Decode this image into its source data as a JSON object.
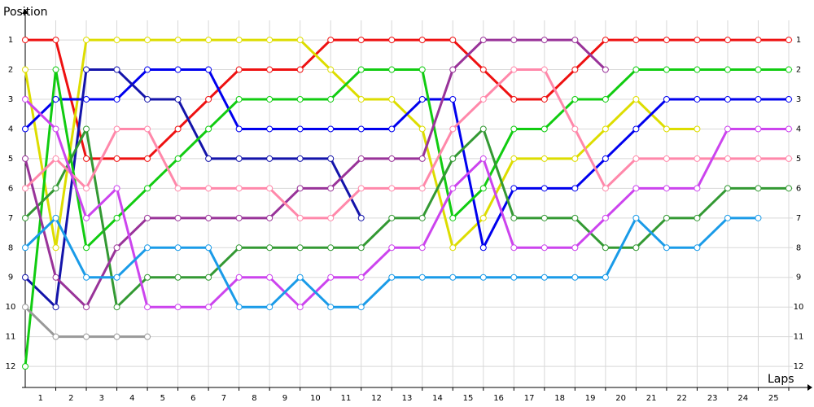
{
  "chart_data": {
    "type": "line",
    "y_axis_label": "Position",
    "x_axis_label": "Laps",
    "x": [
      0,
      1,
      2,
      3,
      4,
      5,
      6,
      7,
      8,
      9,
      10,
      11,
      12,
      13,
      14,
      15,
      16,
      17,
      18,
      19,
      20,
      21,
      22,
      23,
      24,
      25
    ],
    "xlim": [
      0,
      25.4
    ],
    "xticks": [
      1,
      2,
      3,
      4,
      5,
      6,
      7,
      8,
      9,
      10,
      11,
      12,
      13,
      14,
      15,
      16,
      17,
      18,
      19,
      20,
      21,
      22,
      23,
      24,
      25
    ],
    "ylim": [
      0.34,
      12.71
    ],
    "y_inverted": true,
    "yticks": [
      1,
      2,
      3,
      4,
      5,
      6,
      7,
      8,
      9,
      10,
      11,
      12
    ],
    "grid": true,
    "series": [
      {
        "color": "#ee1111",
        "values": [
          1,
          1,
          5,
          5,
          5,
          4,
          3,
          2,
          2,
          2,
          1,
          1,
          1,
          1,
          1,
          2,
          3,
          3,
          2,
          1,
          1,
          1,
          1,
          1,
          1,
          1
        ]
      },
      {
        "color": "#dddd00",
        "values": [
          2,
          8,
          1,
          1,
          1,
          1,
          1,
          1,
          1,
          1,
          2,
          3,
          3,
          4,
          8,
          7,
          5,
          5,
          5,
          4,
          3,
          4,
          4,
          null,
          null,
          null
        ]
      },
      {
        "color": "#0000ee",
        "values": [
          4,
          3,
          3,
          3,
          2,
          2,
          2,
          4,
          4,
          4,
          4,
          4,
          4,
          3,
          3,
          8,
          6,
          6,
          6,
          5,
          4,
          3,
          3,
          3,
          3,
          3
        ]
      },
      {
        "color": "#1414aa",
        "values": [
          9,
          10,
          2,
          2,
          3,
          3,
          5,
          5,
          5,
          5,
          5,
          7,
          null,
          null,
          null,
          null,
          null,
          null,
          null,
          null,
          null,
          null,
          null,
          null,
          null,
          null
        ]
      },
      {
        "color": "#11cc11",
        "values": [
          12,
          2,
          8,
          7,
          6,
          5,
          4,
          3,
          3,
          3,
          3,
          2,
          2,
          2,
          7,
          6,
          4,
          4,
          3,
          3,
          2,
          2,
          2,
          2,
          2,
          2
        ]
      },
      {
        "color": "#339933",
        "values": [
          7,
          6,
          4,
          10,
          9,
          9,
          9,
          8,
          8,
          8,
          8,
          8,
          7,
          7,
          5,
          4,
          7,
          7,
          7,
          8,
          8,
          7,
          7,
          6,
          6,
          6
        ]
      },
      {
        "color": "#993399",
        "values": [
          5,
          9,
          10,
          8,
          7,
          7,
          7,
          7,
          7,
          6,
          6,
          5,
          5,
          5,
          2,
          1,
          1,
          1,
          1,
          2,
          null,
          null,
          null,
          null,
          null,
          null
        ]
      },
      {
        "color": "#ff88aa",
        "values": [
          6,
          5,
          6,
          4,
          4,
          6,
          6,
          6,
          6,
          7,
          7,
          6,
          6,
          6,
          4,
          3,
          2,
          2,
          4,
          6,
          5,
          5,
          5,
          5,
          5,
          5
        ]
      },
      {
        "color": "#cc44ee",
        "values": [
          3,
          4,
          7,
          6,
          10,
          10,
          10,
          9,
          9,
          10,
          9,
          9,
          8,
          8,
          6,
          5,
          8,
          8,
          8,
          7,
          6,
          6,
          6,
          4,
          4,
          4
        ]
      },
      {
        "color": "#1a9be8",
        "values": [
          8,
          7,
          9,
          9,
          8,
          8,
          8,
          10,
          10,
          9,
          10,
          10,
          9,
          9,
          9,
          9,
          9,
          9,
          9,
          9,
          7,
          8,
          8,
          7,
          7,
          null
        ]
      },
      {
        "color": "#999999",
        "values": [
          10,
          11,
          11,
          11,
          11,
          null,
          null,
          null,
          null,
          null,
          null,
          null,
          null,
          null,
          null,
          null,
          null,
          null,
          null,
          null,
          null,
          null,
          null,
          null,
          null,
          null
        ]
      }
    ]
  }
}
